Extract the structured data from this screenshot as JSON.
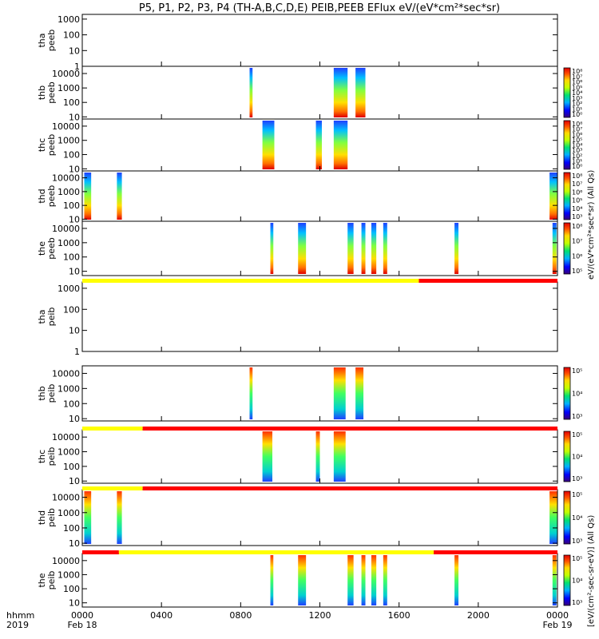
{
  "chart_data": {
    "type": "heatmap",
    "title": "P5, P1, P2, P3, P4 (TH-A,B,C,D,E) PEIB,PEEB EFlux eV/(eV*cm²*sec*sr)",
    "time_axis": {
      "corner_label_top": "hhmm",
      "corner_label_bottom": "2019",
      "ticks": [
        {
          "hhmm": "0000",
          "date": "Feb 18"
        },
        {
          "hhmm": "0400",
          "date": ""
        },
        {
          "hhmm": "0800",
          "date": ""
        },
        {
          "hhmm": "1200",
          "date": ""
        },
        {
          "hhmm": "1600",
          "date": ""
        },
        {
          "hhmm": "2000",
          "date": ""
        },
        {
          "hhmm": "0000",
          "date": "Feb 19"
        }
      ],
      "range_hours": [
        0,
        24
      ]
    },
    "colorbar_labels": {
      "electron": "eV/(eV*cm²*sec*sr) (All Qs)",
      "ion": "[eV/(cm²-sec-sr-eV)] (All Qs)"
    },
    "panels": [
      {
        "label": [
          "tha",
          "peeb"
        ],
        "y_ticks": [
          "1",
          "10",
          "100",
          "1000"
        ],
        "y_log": [
          0,
          3.3
        ],
        "cb_ticks": [],
        "bursts": []
      },
      {
        "label": [
          "thb",
          "peeb"
        ],
        "y_ticks": [
          "10",
          "100",
          "1000",
          "10000"
        ],
        "y_log": [
          0.85,
          4.5
        ],
        "cb_ticks": [
          "10⁸",
          "10⁷",
          "10⁶",
          "10⁵",
          "10⁴",
          "10³",
          "10²",
          "10¹",
          "10⁰"
        ],
        "bursts": [
          [
            8.45,
            8.6
          ],
          [
            12.7,
            13.4
          ],
          [
            13.8,
            14.3
          ]
        ]
      },
      {
        "label": [
          "thc",
          "peeb"
        ],
        "y_ticks": [
          "10",
          "100",
          "1000",
          "10000"
        ],
        "y_log": [
          0.85,
          4.5
        ],
        "cb_ticks": [
          "10⁸",
          "10⁷",
          "10⁶",
          "10⁵",
          "10⁴",
          "10³",
          "10²",
          "10¹",
          "10⁰"
        ],
        "bursts": [
          [
            9.1,
            9.7
          ],
          [
            11.8,
            12.1
          ],
          [
            12.7,
            13.4
          ]
        ]
      },
      {
        "label": [
          "thd",
          "peeb"
        ],
        "y_ticks": [
          "10",
          "100",
          "1000",
          "10000"
        ],
        "y_log": [
          0.85,
          4.5
        ],
        "cb_ticks": [
          "10⁸",
          "10⁷",
          "10⁶",
          "10⁵",
          "10⁴",
          "10³"
        ],
        "bursts": [
          [
            0.1,
            0.45
          ],
          [
            1.75,
            2.0
          ],
          [
            23.6,
            24.0
          ]
        ]
      },
      {
        "label": [
          "the",
          "peeb"
        ],
        "y_ticks": [
          "10",
          "100",
          "1000",
          "10000"
        ],
        "y_log": [
          0.7,
          4.5
        ],
        "cb_ticks": [
          "10⁸",
          "10⁷",
          "10⁶",
          "10⁵"
        ],
        "bursts": [
          [
            9.5,
            9.65
          ],
          [
            10.9,
            11.3
          ],
          [
            13.4,
            13.7
          ],
          [
            14.1,
            14.3
          ],
          [
            14.6,
            14.85
          ],
          [
            15.2,
            15.4
          ],
          [
            18.8,
            19.0
          ],
          [
            23.75,
            23.95
          ]
        ]
      },
      {
        "label": [
          "tha",
          "peib"
        ],
        "y_ticks": [
          "1",
          "10",
          "100",
          "1000"
        ],
        "y_log": [
          0,
          3.3
        ],
        "cb_ticks": [],
        "bursts": [],
        "mode_bar": [
          {
            "from": 0,
            "to": 17.0,
            "color": "#ffff00"
          },
          {
            "from": 17.0,
            "to": 24,
            "color": "#ff0000"
          }
        ]
      },
      {
        "label": [
          "thb",
          "peib"
        ],
        "y_ticks": [
          "10",
          "100",
          "1000",
          "10000"
        ],
        "y_log": [
          0.85,
          4.5
        ],
        "cb_ticks": [
          "10⁵",
          "10⁴",
          "10³"
        ],
        "bursts": [
          [
            8.45,
            8.6
          ],
          [
            12.7,
            13.3
          ],
          [
            13.8,
            14.2
          ]
        ]
      },
      {
        "label": [
          "thc",
          "peib"
        ],
        "y_ticks": [
          "10",
          "100",
          "1000",
          "10000"
        ],
        "y_log": [
          0.85,
          4.5
        ],
        "cb_ticks": [
          "10⁵",
          "10⁴",
          "10³"
        ],
        "bursts": [
          [
            9.1,
            9.6
          ],
          [
            11.8,
            12.0
          ],
          [
            12.7,
            13.3
          ]
        ],
        "mode_bar": [
          {
            "from": 0,
            "to": 3.05,
            "color": "#ffff00"
          },
          {
            "from": 3.05,
            "to": 24,
            "color": "#ff0000"
          }
        ]
      },
      {
        "label": [
          "thd",
          "peib"
        ],
        "y_ticks": [
          "10",
          "100",
          "1000",
          "10000"
        ],
        "y_log": [
          0.85,
          4.5
        ],
        "cb_ticks": [
          "10⁵",
          "10⁴",
          "10³"
        ],
        "bursts": [
          [
            0.1,
            0.45
          ],
          [
            1.75,
            2.0
          ],
          [
            23.6,
            24.0
          ]
        ],
        "mode_bar": [
          {
            "from": 0,
            "to": 3.05,
            "color": "#ffff00"
          },
          {
            "from": 3.05,
            "to": 24,
            "color": "#ff0000"
          }
        ]
      },
      {
        "label": [
          "the",
          "peib"
        ],
        "y_ticks": [
          "10",
          "100",
          "1000",
          "10000"
        ],
        "y_log": [
          0.7,
          4.5
        ],
        "cb_ticks": [
          "10⁵",
          "10⁴",
          "10³"
        ],
        "bursts": [
          [
            9.5,
            9.65
          ],
          [
            10.9,
            11.3
          ],
          [
            13.4,
            13.7
          ],
          [
            14.1,
            14.3
          ],
          [
            14.6,
            14.85
          ],
          [
            15.2,
            15.4
          ],
          [
            18.8,
            19.0
          ],
          [
            23.75,
            23.95
          ]
        ],
        "mode_bar": [
          {
            "from": 0,
            "to": 1.85,
            "color": "#ff0000"
          },
          {
            "from": 1.85,
            "to": 17.75,
            "color": "#ffff00"
          },
          {
            "from": 17.75,
            "to": 24,
            "color": "#ff0000"
          }
        ],
        "mode_bar_below": [
          {
            "from": 0,
            "to": 9.3,
            "color": "#ffff00"
          },
          {
            "from": 9.3,
            "to": 17.75,
            "color": "#ff0000"
          },
          {
            "from": 17.75,
            "to": 21.0,
            "color": "#ffff00"
          },
          {
            "from": 21.0,
            "to": 24,
            "color": "#ff0000"
          }
        ]
      }
    ]
  }
}
